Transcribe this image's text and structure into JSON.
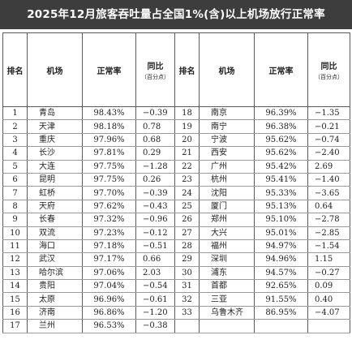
{
  "title": "2025年12月旅客吞吐量占全国1%(含)以上机场放行正常率",
  "headers": {
    "rank": "排名",
    "airport": "机场",
    "rate": "正常率",
    "yoy": "同比",
    "yoy_unit": "（百分点）"
  },
  "left": [
    {
      "rank": "1",
      "airport": "青岛",
      "rate": "98.43%",
      "yoy": "−0.39"
    },
    {
      "rank": "2",
      "airport": "天津",
      "rate": "98.18%",
      "yoy": "0.78"
    },
    {
      "rank": "3",
      "airport": "重庆",
      "rate": "97.96%",
      "yoy": "0.68"
    },
    {
      "rank": "4",
      "airport": "长沙",
      "rate": "97.81%",
      "yoy": "0.29"
    },
    {
      "rank": "5",
      "airport": "大连",
      "rate": "97.75%",
      "yoy": "−1.28"
    },
    {
      "rank": "6",
      "airport": "昆明",
      "rate": "97.75%",
      "yoy": "0.26"
    },
    {
      "rank": "7",
      "airport": "虹桥",
      "rate": "97.70%",
      "yoy": "−0.39"
    },
    {
      "rank": "8",
      "airport": "天府",
      "rate": "97.62%",
      "yoy": "−0.43"
    },
    {
      "rank": "9",
      "airport": "长春",
      "rate": "97.32%",
      "yoy": "−0.96"
    },
    {
      "rank": "10",
      "airport": "双流",
      "rate": "97.23%",
      "yoy": "−0.12"
    },
    {
      "rank": "11",
      "airport": "海口",
      "rate": "97.18%",
      "yoy": "−0.51"
    },
    {
      "rank": "12",
      "airport": "武汉",
      "rate": "97.17%",
      "yoy": "0.66"
    },
    {
      "rank": "13",
      "airport": "哈尔滨",
      "rate": "97.06%",
      "yoy": "2.03"
    },
    {
      "rank": "14",
      "airport": "贵阳",
      "rate": "97.04%",
      "yoy": "−0.54"
    },
    {
      "rank": "15",
      "airport": "太原",
      "rate": "96.96%",
      "yoy": "−0.61"
    },
    {
      "rank": "16",
      "airport": "济南",
      "rate": "96.86%",
      "yoy": "−1.20"
    },
    {
      "rank": "17",
      "airport": "兰州",
      "rate": "96.53%",
      "yoy": "−0.38"
    }
  ],
  "right": [
    {
      "rank": "18",
      "airport": "南京",
      "rate": "96.39%",
      "yoy": "−1.35"
    },
    {
      "rank": "19",
      "airport": "南宁",
      "rate": "96.38%",
      "yoy": "−0.21"
    },
    {
      "rank": "20",
      "airport": "宁波",
      "rate": "95.62%",
      "yoy": "−0.74"
    },
    {
      "rank": "21",
      "airport": "西安",
      "rate": "95.62%",
      "yoy": "−2.40"
    },
    {
      "rank": "22",
      "airport": "广州",
      "rate": "95.42%",
      "yoy": "2.69"
    },
    {
      "rank": "23",
      "airport": "杭州",
      "rate": "95.41%",
      "yoy": "−1.40"
    },
    {
      "rank": "24",
      "airport": "沈阳",
      "rate": "95.33%",
      "yoy": "−3.65"
    },
    {
      "rank": "25",
      "airport": "厦门",
      "rate": "95.13%",
      "yoy": "0.64"
    },
    {
      "rank": "26",
      "airport": "郑州",
      "rate": "95.10%",
      "yoy": "−2.78"
    },
    {
      "rank": "27",
      "airport": "大兴",
      "rate": "95.01%",
      "yoy": "−2.85"
    },
    {
      "rank": "28",
      "airport": "福州",
      "rate": "94.97%",
      "yoy": "−1.54"
    },
    {
      "rank": "29",
      "airport": "深圳",
      "rate": "94.96%",
      "yoy": "1.15"
    },
    {
      "rank": "30",
      "airport": "浦东",
      "rate": "94.57%",
      "yoy": "−0.27"
    },
    {
      "rank": "31",
      "airport": "首都",
      "rate": "92.65%",
      "yoy": "0.09"
    },
    {
      "rank": "32",
      "airport": "三亚",
      "rate": "91.55%",
      "yoy": "0.40"
    },
    {
      "rank": "33",
      "airport": "乌鲁木齐",
      "rate": "86.95%",
      "yoy": "−4.07"
    }
  ]
}
